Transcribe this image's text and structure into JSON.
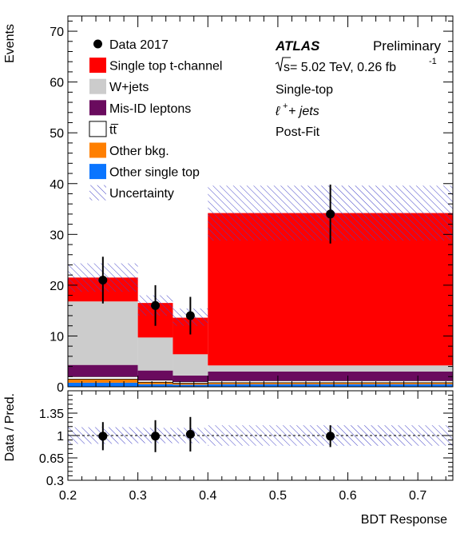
{
  "chart_data": {
    "type": "bar",
    "x_edges": [
      0.2,
      0.3,
      0.35,
      0.4,
      0.75
    ],
    "xlabel": "BDT Response",
    "xlim": [
      0.2,
      0.75
    ],
    "x_ticks": [
      0.2,
      0.3,
      0.4,
      0.5,
      0.6,
      0.7
    ],
    "x_tick_labels": [
      "0.2",
      "0.3",
      "0.4",
      "0.5",
      "0.6",
      "0.7"
    ],
    "top_panel": {
      "ylabel": "Events",
      "ylim": [
        0,
        73
      ],
      "y_ticks": [
        0,
        10,
        20,
        30,
        40,
        50,
        60,
        70
      ],
      "y_tick_labels": [
        "0",
        "10",
        "20",
        "30",
        "40",
        "50",
        "60",
        "70"
      ],
      "stack": [
        {
          "name": "Other single top",
          "color": "#0a75ff",
          "values": [
            0.8,
            0.5,
            0.4,
            0.5
          ]
        },
        {
          "name": "Other bkg.",
          "color": "#ff7f00",
          "values": [
            0.7,
            0.4,
            0.3,
            0.3
          ]
        },
        {
          "name": "tt̅",
          "color": "#ffffff",
          "values": [
            0.5,
            0.4,
            0.3,
            0.4
          ]
        },
        {
          "name": "Mis-ID leptons",
          "color": "#6a0b5e",
          "values": [
            2.3,
            1.9,
            1.2,
            1.8
          ]
        },
        {
          "name": "W+jets",
          "color": "#cccccc",
          "values": [
            12.5,
            6.5,
            4.2,
            1.2
          ]
        },
        {
          "name": "Single top t-channel",
          "color": "#ff0000",
          "values": [
            4.7,
            6.8,
            7.2,
            30.0
          ]
        }
      ],
      "uncertainty": {
        "name": "Uncertainty",
        "up": [
          24.3,
          18.0,
          15.4,
          39.6
        ],
        "down": [
          18.7,
          14.0,
          12.0,
          28.8
        ]
      },
      "data": {
        "name": "Data 2017",
        "x": [
          0.25,
          0.325,
          0.375,
          0.575
        ],
        "y": [
          21,
          16,
          14,
          34
        ],
        "err": [
          4.6,
          4.0,
          3.7,
          5.8
        ]
      }
    },
    "ratio_panel": {
      "ylabel": "Data / Pred.",
      "ylim": [
        0.3,
        1.7
      ],
      "y_ticks": [
        0.3,
        0.65,
        1,
        1.35
      ],
      "y_tick_labels": [
        "0.3",
        "0.65",
        "1",
        "1.35"
      ],
      "band_half_width": [
        0.13,
        0.12,
        0.12,
        0.16
      ],
      "x": [
        0.25,
        0.325,
        0.375,
        0.575
      ],
      "y": [
        0.99,
        0.99,
        1.02,
        0.99
      ],
      "err": [
        0.22,
        0.25,
        0.27,
        0.17
      ]
    },
    "legend": {
      "placement": "top-left",
      "entries": [
        "Data 2017",
        "Single top t-channel",
        "W+jets",
        "Mis-ID leptons",
        "tt̅",
        "Other bkg.",
        "Other single top",
        "Uncertainty"
      ]
    },
    "annotations": {
      "atlas": "ATLAS",
      "status": "Preliminary",
      "energy_sqrt": "s",
      "energy_rest": " = 5.02 TeV, 0.26 fb",
      "energy_sup": "-1",
      "region": "Single-top",
      "channel_lep": "ℓ",
      "channel_sup": "+",
      "channel_rest": " + jets",
      "fit": "Post-Fit"
    }
  }
}
